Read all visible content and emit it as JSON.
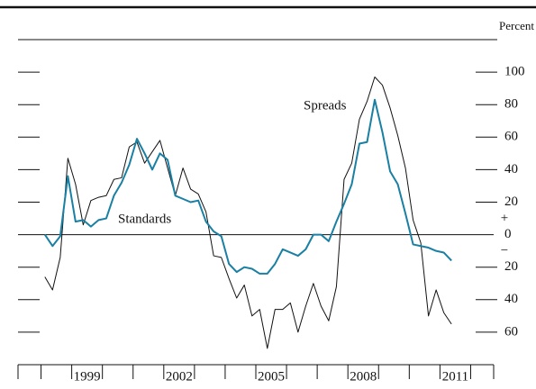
{
  "chart_data": {
    "type": "line",
    "x": [
      1998.125,
      1998.375,
      1998.625,
      1998.875,
      1999.125,
      1999.375,
      1999.625,
      1999.875,
      2000.125,
      2000.375,
      2000.625,
      2000.875,
      2001.125,
      2001.375,
      2001.625,
      2001.875,
      2002.125,
      2002.375,
      2002.625,
      2002.875,
      2003.125,
      2003.375,
      2003.625,
      2003.875,
      2004.125,
      2004.375,
      2004.625,
      2004.875,
      2005.125,
      2005.375,
      2005.625,
      2005.875,
      2006.125,
      2006.375,
      2006.625,
      2006.875,
      2007.125,
      2007.375,
      2007.625,
      2007.875,
      2008.125,
      2008.375,
      2008.625,
      2008.875,
      2009.125,
      2009.375,
      2009.625,
      2009.875,
      2010.125,
      2010.375,
      2010.625,
      2010.875,
      2011.125,
      2011.375
    ],
    "series": [
      {
        "name": "Spreads",
        "color": "#111111",
        "values": [
          -26,
          -34,
          -14,
          47,
          31,
          6,
          21,
          23,
          24,
          34,
          35,
          54,
          57,
          44,
          51,
          58,
          41,
          24,
          41,
          28,
          25,
          14,
          -13,
          -14,
          -27,
          -39,
          -31,
          -50,
          -46,
          -70,
          -46,
          -46,
          -42,
          -60,
          -44,
          -30,
          -44,
          -53,
          -32,
          34,
          44,
          71,
          82,
          97,
          92,
          78,
          61,
          41,
          9,
          -5,
          -50,
          -34,
          -48,
          -55
        ]
      },
      {
        "name": "Standards",
        "color": "#1a80a3",
        "values": [
          0,
          -7,
          -1,
          36,
          8,
          9,
          5,
          9,
          10,
          24,
          32,
          43,
          59,
          50,
          40,
          50,
          46,
          24,
          22,
          20,
          21,
          8,
          2,
          -1,
          -18,
          -23,
          -20,
          -21,
          -24,
          -24,
          -18,
          -9,
          -11,
          -13,
          -9,
          0,
          0,
          -4,
          8,
          19,
          31,
          56,
          57,
          83,
          63,
          39,
          31,
          13,
          -6,
          -7,
          -8,
          -10,
          -11,
          -16
        ]
      }
    ],
    "xlim": [
      1997.25,
      2012.75
    ],
    "xticks": [
      1998,
      1999,
      2000,
      2001,
      2002,
      2003,
      2004,
      2005,
      2006,
      2007,
      2008,
      2009,
      2010,
      2011,
      2012
    ],
    "xlabels": [
      {
        "value": 1999.5,
        "label": "1999"
      },
      {
        "value": 2002.5,
        "label": "2002"
      },
      {
        "value": 2005.5,
        "label": "2005"
      },
      {
        "value": 2008.5,
        "label": "2008"
      },
      {
        "value": 2011.5,
        "label": "2011"
      }
    ],
    "ylim": [
      -80,
      120
    ],
    "yticks": [
      100,
      80,
      60,
      40,
      20,
      0,
      {
        "value": -20,
        "label": "20"
      },
      {
        "value": -40,
        "label": "40"
      },
      {
        "value": -60,
        "label": "60"
      }
    ],
    "y_unit": "Percent",
    "zero_signs": [
      "+",
      "−"
    ]
  }
}
